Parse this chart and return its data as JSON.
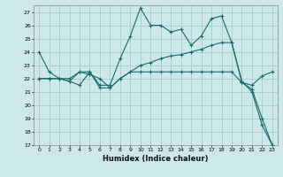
{
  "title": "",
  "xlabel": "Humidex (Indice chaleur)",
  "ylabel": "",
  "background_color": "#cce8e8",
  "grid_color": "#aacccc",
  "line_color": "#1a6b6b",
  "xlim": [
    -0.5,
    23.5
  ],
  "ylim": [
    17,
    27.5
  ],
  "yticks": [
    17,
    18,
    19,
    20,
    21,
    22,
    23,
    24,
    25,
    26,
    27
  ],
  "xticks": [
    0,
    1,
    2,
    3,
    4,
    5,
    6,
    7,
    8,
    9,
    10,
    11,
    12,
    13,
    14,
    15,
    16,
    17,
    18,
    19,
    20,
    21,
    22,
    23
  ],
  "series": [
    {
      "x": [
        0,
        1,
        2,
        3,
        4,
        5,
        6,
        7,
        8,
        9,
        10,
        11,
        12,
        13,
        14,
        15,
        16,
        17,
        18,
        19,
        20,
        21,
        22,
        23
      ],
      "y": [
        24.0,
        22.5,
        22.0,
        22.0,
        22.5,
        22.5,
        21.5,
        21.5,
        23.5,
        25.2,
        27.3,
        26.0,
        26.0,
        25.5,
        25.7,
        24.5,
        25.2,
        26.5,
        26.7,
        24.7,
        21.8,
        21.0,
        18.5,
        17.0
      ]
    },
    {
      "x": [
        0,
        1,
        2,
        3,
        4,
        5,
        6,
        7,
        8,
        9,
        10,
        11,
        12,
        13,
        14,
        15,
        16,
        17,
        18,
        19,
        20,
        21,
        22,
        23
      ],
      "y": [
        22.0,
        22.0,
        22.0,
        21.8,
        22.5,
        22.3,
        22.0,
        21.3,
        22.0,
        22.5,
        23.0,
        23.2,
        23.5,
        23.7,
        23.8,
        24.0,
        24.2,
        24.5,
        24.7,
        24.7,
        21.7,
        21.2,
        19.0,
        17.0
      ]
    },
    {
      "x": [
        0,
        1,
        2,
        3,
        4,
        5,
        6,
        7,
        8,
        9,
        10,
        11,
        12,
        13,
        14,
        15,
        16,
        17,
        18,
        19,
        20,
        21,
        22,
        23
      ],
      "y": [
        22.0,
        22.0,
        22.0,
        21.8,
        21.5,
        22.5,
        21.3,
        21.3,
        22.0,
        22.5,
        22.5,
        22.5,
        22.5,
        22.5,
        22.5,
        22.5,
        22.5,
        22.5,
        22.5,
        22.5,
        21.7,
        21.5,
        22.2,
        22.5
      ]
    }
  ]
}
